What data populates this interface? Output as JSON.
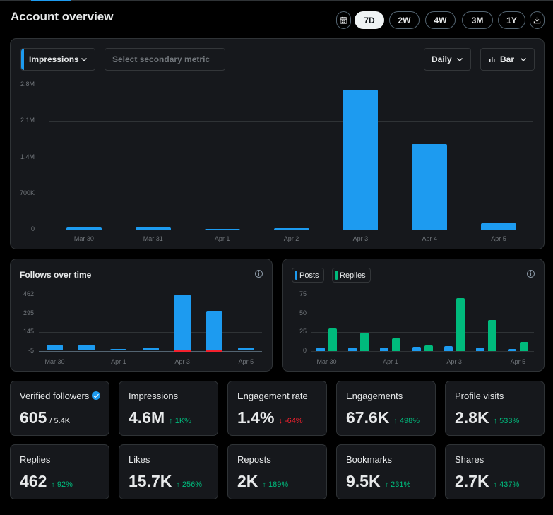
{
  "header": {
    "title": "Account overview",
    "ranges": [
      {
        "label": "7D",
        "selected": true
      },
      {
        "label": "2W",
        "selected": false
      },
      {
        "label": "4W",
        "selected": false
      },
      {
        "label": "3M",
        "selected": false
      },
      {
        "label": "1Y",
        "selected": false
      }
    ],
    "calendar_icon": "calendar-icon",
    "download_icon": "download-icon"
  },
  "main_chart": {
    "primary_metric": "Impressions",
    "secondary_metric_placeholder": "Select secondary metric",
    "interval": "Daily",
    "chart_type_label": "Bar",
    "accent": "#1d9bf0"
  },
  "follows_chart": {
    "title": "Follows over time"
  },
  "posts_replies_chart": {
    "legend": [
      {
        "label": "Posts",
        "color": "#1d9bf0"
      },
      {
        "label": "Replies",
        "color": "#00ba7c"
      }
    ]
  },
  "chart_data": [
    {
      "type": "bar",
      "categories": [
        "Mar 30",
        "Mar 31",
        "Apr 1",
        "Apr 2",
        "Apr 3",
        "Apr 4",
        "Apr 5"
      ],
      "series": [
        {
          "name": "Impressions",
          "values": [
            40000,
            35000,
            15000,
            30000,
            2700000,
            1650000,
            120000
          ]
        }
      ],
      "yticks": [
        "0",
        "700K",
        "1.4M",
        "2.1M",
        "2.8M"
      ],
      "ylim": [
        0,
        2800000
      ]
    },
    {
      "type": "bar",
      "title": "Follows over time",
      "categories": [
        "Mar 30",
        "Mar 31",
        "Apr 1",
        "Apr 2",
        "Apr 3",
        "Apr 4",
        "Apr 5"
      ],
      "series": [
        {
          "values": [
            47,
            45,
            11,
            26,
            462,
            325,
            27
          ]
        },
        {
          "values": [
            0,
            0,
            0,
            0,
            -5,
            -5,
            0
          ]
        }
      ],
      "xticks": [
        "Mar 30",
        "Apr 1",
        "Apr 3",
        "Apr 5"
      ],
      "yticks": [
        "-5",
        "145",
        "295",
        "462"
      ],
      "ylim": [
        -5,
        462
      ]
    },
    {
      "type": "bar",
      "categories": [
        "Mar 30",
        "Mar 31",
        "Apr 1",
        "Apr 2",
        "Apr 3",
        "Apr 4",
        "Apr 5"
      ],
      "series": [
        {
          "name": "Posts",
          "values": [
            5,
            5,
            5,
            6,
            7,
            5,
            3
          ]
        },
        {
          "name": "Replies",
          "values": [
            32,
            26,
            18,
            8,
            75,
            44,
            13
          ]
        }
      ],
      "xticks": [
        "Mar 30",
        "Apr 1",
        "Apr 3",
        "Apr 5"
      ],
      "yticks": [
        "0",
        "25",
        "50",
        "75"
      ],
      "ylim": [
        0,
        80
      ]
    }
  ],
  "stats": [
    {
      "label": "Verified followers",
      "value": "605",
      "sub": "/ 5.4K",
      "verified": true
    },
    {
      "label": "Impressions",
      "value": "4.6M",
      "change": "↑ 1K%",
      "dir": "up"
    },
    {
      "label": "Engagement rate",
      "value": "1.4%",
      "change": "↓ -64%",
      "dir": "down"
    },
    {
      "label": "Engagements",
      "value": "67.6K",
      "change": "↑ 498%",
      "dir": "up"
    },
    {
      "label": "Profile visits",
      "value": "2.8K",
      "change": "↑ 533%",
      "dir": "up"
    },
    {
      "label": "Replies",
      "value": "462",
      "change": "↑ 92%",
      "dir": "up"
    },
    {
      "label": "Likes",
      "value": "15.7K",
      "change": "↑ 256%",
      "dir": "up"
    },
    {
      "label": "Reposts",
      "value": "2K",
      "change": "↑ 189%",
      "dir": "up"
    },
    {
      "label": "Bookmarks",
      "value": "9.5K",
      "change": "↑ 231%",
      "dir": "up"
    },
    {
      "label": "Shares",
      "value": "2.7K",
      "change": "↑ 437%",
      "dir": "up"
    }
  ]
}
